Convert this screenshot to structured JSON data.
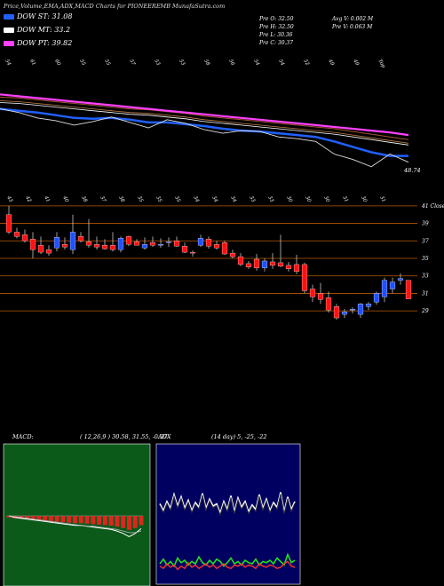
{
  "header": {
    "title": "Price,Volume,EMA,ADX,MACD Charts for PIONEEREMB MunafaSutra.com"
  },
  "legend": [
    {
      "label": "DOW ST: 31.08",
      "color": "#2060ff"
    },
    {
      "label": "DOW MT: 33.2",
      "color": "#ffffff"
    },
    {
      "label": "DOW PT: 39.82",
      "color": "#ff40ff"
    }
  ],
  "stats": {
    "open": "Pre O: 32.50",
    "high": "Pre H: 32.50",
    "low": "Pre L: 30.36",
    "close": "Pre C: 30.37",
    "avg_vol": "Avg V: 0.002 M",
    "pre_vol": "Pre V: 0.063 M"
  },
  "colors": {
    "bull": "#2050ff",
    "bear": "#ff1010",
    "grid": "#b85a00",
    "ema_pt": "#ff40ff",
    "macd_bg": "#0b5a1a",
    "adx_bg": "#000060"
  },
  "chart_data": [
    {
      "type": "line",
      "name": "ema-panel",
      "top_labels": [
        "54",
        "61",
        "60",
        "55",
        "55",
        "57",
        "53",
        "53",
        "58",
        "56",
        "54",
        "54",
        "52",
        "49",
        "49",
        "Top"
      ],
      "end_label": "48.74",
      "series": [
        {
          "name": "DOW PT",
          "values": [
            56.2,
            56.0,
            55.8,
            55.6,
            55.4,
            55.2,
            55.0,
            54.8,
            54.6,
            54.4,
            54.2,
            54.0,
            53.8,
            53.6,
            53.4,
            53.2,
            53.0,
            52.8,
            52.6,
            52.4,
            52.2,
            52.0,
            51.7
          ]
        },
        {
          "name": "DOW MT",
          "values": [
            55.3,
            55.2,
            55.0,
            54.8,
            54.6,
            54.4,
            54.2,
            54.0,
            53.9,
            53.7,
            53.5,
            53.2,
            53.0,
            52.8,
            52.6,
            52.4,
            52.2,
            52.0,
            51.8,
            51.5,
            51.2,
            50.9,
            50.6
          ]
        },
        {
          "name": "DOW ST",
          "values": [
            54.6,
            54.4,
            54.2,
            53.9,
            53.6,
            53.5,
            53.6,
            53.4,
            53.1,
            53.1,
            52.9,
            52.7,
            52.4,
            52.2,
            52.1,
            51.9,
            51.7,
            51.5,
            51.0,
            50.4,
            49.8,
            49.4,
            49.4
          ]
        },
        {
          "name": "price",
          "values": [
            54.6,
            54.2,
            53.6,
            53.3,
            52.8,
            53.2,
            53.7,
            53.1,
            52.5,
            53.4,
            53.0,
            52.3,
            51.9,
            52.2,
            52.1,
            51.5,
            51.3,
            51.0,
            49.6,
            49.0,
            48.2,
            49.6,
            48.7
          ]
        }
      ]
    },
    {
      "type": "bar",
      "name": "candlestick-panel",
      "top_labels": [
        "43",
        "42",
        "41",
        "40",
        "38",
        "37",
        "38",
        "35",
        "35",
        "35",
        "34",
        "34",
        "34",
        "33",
        "33",
        "30",
        "30",
        "30",
        "31",
        "30",
        "31"
      ],
      "axis_labels": [
        "41 Close",
        "39",
        "37",
        "35",
        "33",
        "31",
        "29"
      ],
      "ylim": [
        28,
        42
      ],
      "candles": [
        [
          40,
          41,
          37.8,
          38
        ],
        [
          38,
          38.5,
          37.3,
          37.5
        ],
        [
          37.7,
          38.3,
          36.8,
          37
        ],
        [
          37.2,
          38,
          35,
          36
        ],
        [
          36.5,
          37.5,
          35.5,
          35.7
        ],
        [
          36,
          36.5,
          35.3,
          35.6
        ],
        [
          36.2,
          38,
          35.8,
          37.4
        ],
        [
          36.6,
          37.4,
          36,
          36.3
        ],
        [
          36,
          40,
          35.5,
          38
        ],
        [
          37.5,
          38,
          36.8,
          37
        ],
        [
          36.9,
          39.5,
          36.2,
          36.5
        ],
        [
          36.6,
          37.5,
          36,
          36.3
        ],
        [
          36.5,
          37.2,
          36,
          36.1
        ],
        [
          36.5,
          38,
          35.8,
          36
        ],
        [
          36,
          37.5,
          35.7,
          37.3
        ],
        [
          37.5,
          37.6,
          36.4,
          36.6
        ],
        [
          36.9,
          37.2,
          36.5,
          36.5
        ],
        [
          36.2,
          37.4,
          36,
          36.6
        ],
        [
          36.8,
          37.5,
          36.3,
          36.5
        ],
        [
          36.5,
          37.3,
          36.2,
          36.6
        ],
        [
          36.8,
          37.4,
          36.3,
          36.9
        ],
        [
          37,
          37.5,
          36.3,
          36.4
        ],
        [
          36.4,
          36.8,
          35.6,
          35.7
        ],
        [
          35.7,
          35.9,
          35.2,
          35.6
        ],
        [
          36.5,
          37.7,
          36.3,
          37.3
        ],
        [
          37.2,
          37.5,
          36.1,
          36.4
        ],
        [
          36.6,
          37,
          36,
          36.2
        ],
        [
          36.8,
          37,
          35.4,
          35.5
        ],
        [
          35.6,
          36,
          35,
          35.2
        ],
        [
          35.2,
          35.6,
          34.1,
          34.3
        ],
        [
          34.4,
          34.7,
          33.8,
          34
        ],
        [
          34.9,
          35.5,
          33.6,
          33.9
        ],
        [
          33.9,
          35,
          33.5,
          34.7
        ],
        [
          34.6,
          35.6,
          33.8,
          34.2
        ],
        [
          34.5,
          37.7,
          34,
          34.1
        ],
        [
          34.2,
          34.6,
          33.5,
          33.8
        ],
        [
          34.3,
          35.4,
          33.2,
          33.5
        ],
        [
          34.3,
          34.5,
          31,
          31.3
        ],
        [
          31.5,
          32,
          30,
          30.6
        ],
        [
          31,
          32.2,
          29.8,
          30.3
        ],
        [
          30.5,
          31.2,
          28.8,
          29.1
        ],
        [
          29.5,
          29.8,
          28,
          28.2
        ],
        [
          28.6,
          29.2,
          28.2,
          28.9
        ],
        [
          29.1,
          29.4,
          28.7,
          29.2
        ],
        [
          28.6,
          29.9,
          28.2,
          29.8
        ],
        [
          29.5,
          30,
          29.1,
          29.8
        ],
        [
          30,
          31.2,
          29.7,
          31
        ],
        [
          30.6,
          32.8,
          30,
          32.5
        ],
        [
          31.5,
          32.8,
          31,
          32.3
        ],
        [
          32.5,
          33.3,
          32,
          32.7
        ],
        [
          32.5,
          32.5,
          30.36,
          30.37
        ]
      ]
    },
    {
      "type": "line",
      "name": "macd-panel",
      "title": "MACD:",
      "params": "( 12,26,9 ) 30.58, 31.55, -0.97",
      "series": [
        {
          "name": "macd",
          "values": [
            0,
            -0.2,
            -0.3,
            -0.4,
            -0.5,
            -0.6,
            -0.7,
            -0.8,
            -0.9,
            -1,
            -1.1,
            -1.2,
            -1.2,
            -1.3,
            -1.4,
            -1.5,
            -1.6,
            -1.7,
            -1.9,
            -2.2,
            -2.6,
            -2.2,
            -1.6
          ]
        },
        {
          "name": "signal",
          "values": [
            0,
            -0.1,
            -0.2,
            -0.3,
            -0.4,
            -0.5,
            -0.6,
            -0.7,
            -0.8,
            -0.9,
            -1,
            -1.1,
            -1.2,
            -1.3,
            -1.3,
            -1.4,
            -1.5,
            -1.6,
            -1.7,
            -1.9,
            -2.1,
            -2.1,
            -1.9
          ]
        }
      ]
    },
    {
      "type": "line",
      "name": "adx-panel",
      "title": "ADX",
      "params": "(14 day) 5, -25, -22",
      "series": [
        {
          "name": "adx",
          "values": [
            62,
            56,
            64,
            58,
            70,
            60,
            68,
            58,
            65,
            56,
            63,
            59,
            71,
            58,
            66,
            60,
            62,
            54,
            64,
            57,
            69,
            55,
            67,
            59,
            64,
            55,
            61,
            57,
            70,
            58,
            66,
            56,
            63,
            59,
            72,
            55,
            68,
            57,
            64
          ]
        },
        {
          "name": "plus_di",
          "values": [
            10,
            14,
            9,
            12,
            8,
            15,
            11,
            13,
            9,
            12,
            10,
            16,
            11,
            9,
            13,
            10,
            14,
            12,
            8,
            11,
            15,
            10,
            12,
            9,
            13,
            11,
            10,
            14,
            9,
            12,
            11,
            13,
            10,
            15,
            12,
            9,
            18,
            11,
            13
          ]
        },
        {
          "name": "minus_di",
          "values": [
            8,
            6,
            10,
            7,
            9,
            5,
            8,
            6,
            11,
            7,
            9,
            6,
            8,
            10,
            7,
            9,
            6,
            8,
            10,
            7,
            6,
            9,
            8,
            10,
            7,
            9,
            8,
            6,
            10,
            8,
            7,
            9,
            8,
            6,
            7,
            10,
            12,
            8,
            7
          ]
        }
      ]
    }
  ]
}
